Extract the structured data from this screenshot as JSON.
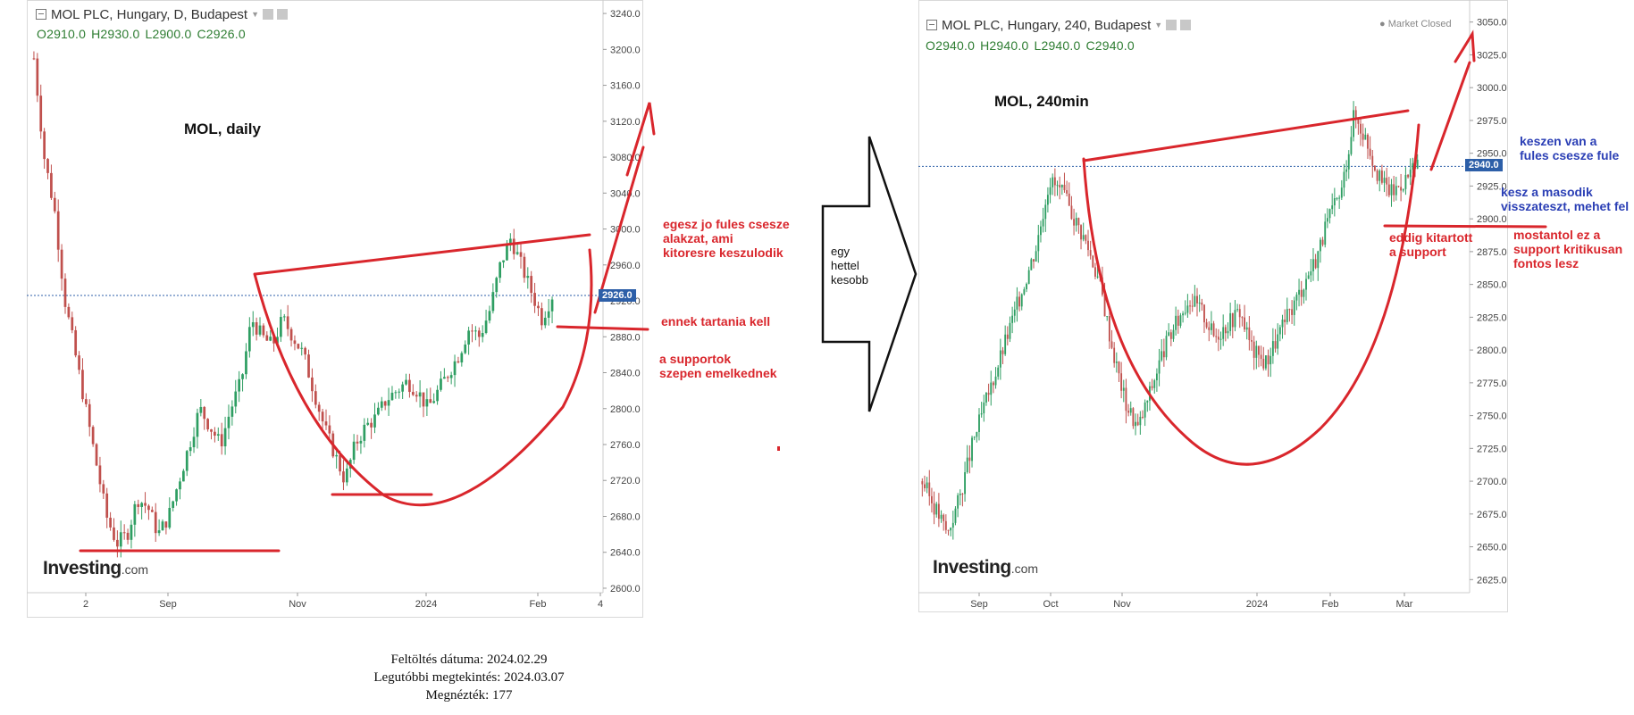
{
  "charts": [
    {
      "title": "MOL PLC, Hungary, D, Budapest",
      "ohlc": [
        "O2910.0",
        "H2930.0",
        "L2900.0",
        "C2926.0"
      ],
      "annotation": "MOL, daily",
      "current_price_label": "2926.0",
      "logo": "Investing",
      "logo_suffix": ".com",
      "notes": {
        "n1": "egesz jo fules csesze\nalakzat, ami\nkitoresre keszulodik",
        "n2": "ennek tartania kell",
        "n3": "a supportok\nszepen emelkednek"
      }
    },
    {
      "title": "MOL PLC, Hungary, 240, Budapest",
      "ohlc": [
        "O2940.0",
        "H2940.0",
        "L2940.0",
        "C2940.0"
      ],
      "annotation": "MOL, 240min",
      "market_status": "● Market Closed",
      "current_price_label": "2940.0",
      "logo": "Investing",
      "logo_suffix": ".com",
      "notes": {
        "b1": "keszen van a\nfules csesze fule",
        "b2": "kesz a masodik\nvisszateszt, mehet fel",
        "r1": "eddig kitartott\na support",
        "r2": "mostantol ez a\nsupport kritikusan\nfontos lesz"
      }
    }
  ],
  "arrow_text": "egy\nhettel\nkesobb",
  "footer": {
    "line1": "Feltöltés dátuma: 2024.02.29",
    "line2": "Legutóbbi megtekintés: 2024.03.07",
    "line3": "Megnézték: 177"
  },
  "chart_data": [
    {
      "type": "candlestick",
      "title": "MOL PLC, Hungary, D, Budapest",
      "y_ticks": [
        2600,
        2640,
        2680,
        2720,
        2760,
        2800,
        2840,
        2880,
        2920,
        2960,
        3000,
        3040,
        3080,
        3120,
        3160,
        3200,
        3240
      ],
      "y_tick_labels": [
        "2600.0",
        "2640.0",
        "2680.0",
        "2720.0",
        "2760.0",
        "2800.0",
        "2840.0",
        "2880.0",
        "2920.0",
        "2960.0",
        "3000.0",
        "3040.0",
        "3080.0",
        "3120.0",
        "3160.0",
        "3200.0",
        "3240.0"
      ],
      "ylim": [
        2595,
        3255
      ],
      "x_tick_labels": [
        "2",
        "Sep",
        "Nov",
        "2024",
        "Feb",
        "4"
      ],
      "last_close": 2926,
      "close_path": [
        3190,
        3080,
        3020,
        2920,
        2860,
        2800,
        2740,
        2680,
        2650,
        2660,
        2700,
        2690,
        2660,
        2680,
        2720,
        2760,
        2800,
        2780,
        2760,
        2800,
        2830,
        2900,
        2880,
        2870,
        2900,
        2880,
        2860,
        2820,
        2780,
        2750,
        2720,
        2760,
        2780,
        2790,
        2810,
        2820,
        2830,
        2820,
        2800,
        2820,
        2840,
        2860,
        2890,
        2880,
        2910,
        2960,
        2990,
        2960,
        2930,
        2900,
        2926
      ],
      "colors": {
        "up": "#2e9e62",
        "down": "#c0504d"
      }
    },
    {
      "type": "candlestick",
      "title": "MOL PLC, Hungary, 240, Budapest",
      "y_ticks": [
        2625,
        2650,
        2675,
        2700,
        2725,
        2750,
        2775,
        2800,
        2825,
        2850,
        2875,
        2900,
        2925,
        2950,
        2975,
        3000,
        3025,
        3050
      ],
      "y_tick_labels": [
        "2625.0",
        "2650.0",
        "2675.0",
        "2700.0",
        "2725.0",
        "2750.0",
        "2775.0",
        "2800.0",
        "2825.0",
        "2850.0",
        "2875.0",
        "2900.0",
        "2925.0",
        "2950.0",
        "2975.0",
        "3000.0",
        "3025.0",
        "3050.0"
      ],
      "ylim": [
        2615,
        3060
      ],
      "x_tick_labels": [
        "Sep",
        "Oct",
        "Nov",
        "2024",
        "Feb",
        "Mar"
      ],
      "last_close": 2940,
      "close_path": [
        2700,
        2680,
        2660,
        2690,
        2730,
        2760,
        2790,
        2820,
        2850,
        2880,
        2930,
        2920,
        2900,
        2880,
        2850,
        2800,
        2760,
        2740,
        2770,
        2800,
        2820,
        2840,
        2830,
        2810,
        2820,
        2830,
        2800,
        2790,
        2810,
        2830,
        2850,
        2870,
        2900,
        2920,
        2980,
        2960,
        2930,
        2920,
        2930,
        2940
      ],
      "colors": {
        "up": "#2e9e62",
        "down": "#c0504d"
      }
    }
  ],
  "colors": {
    "annotation_red": "#d9262c",
    "annotation_blue": "#2b3fb5",
    "price_line": "#2d5fa8",
    "grid": "#e8e8e8"
  }
}
